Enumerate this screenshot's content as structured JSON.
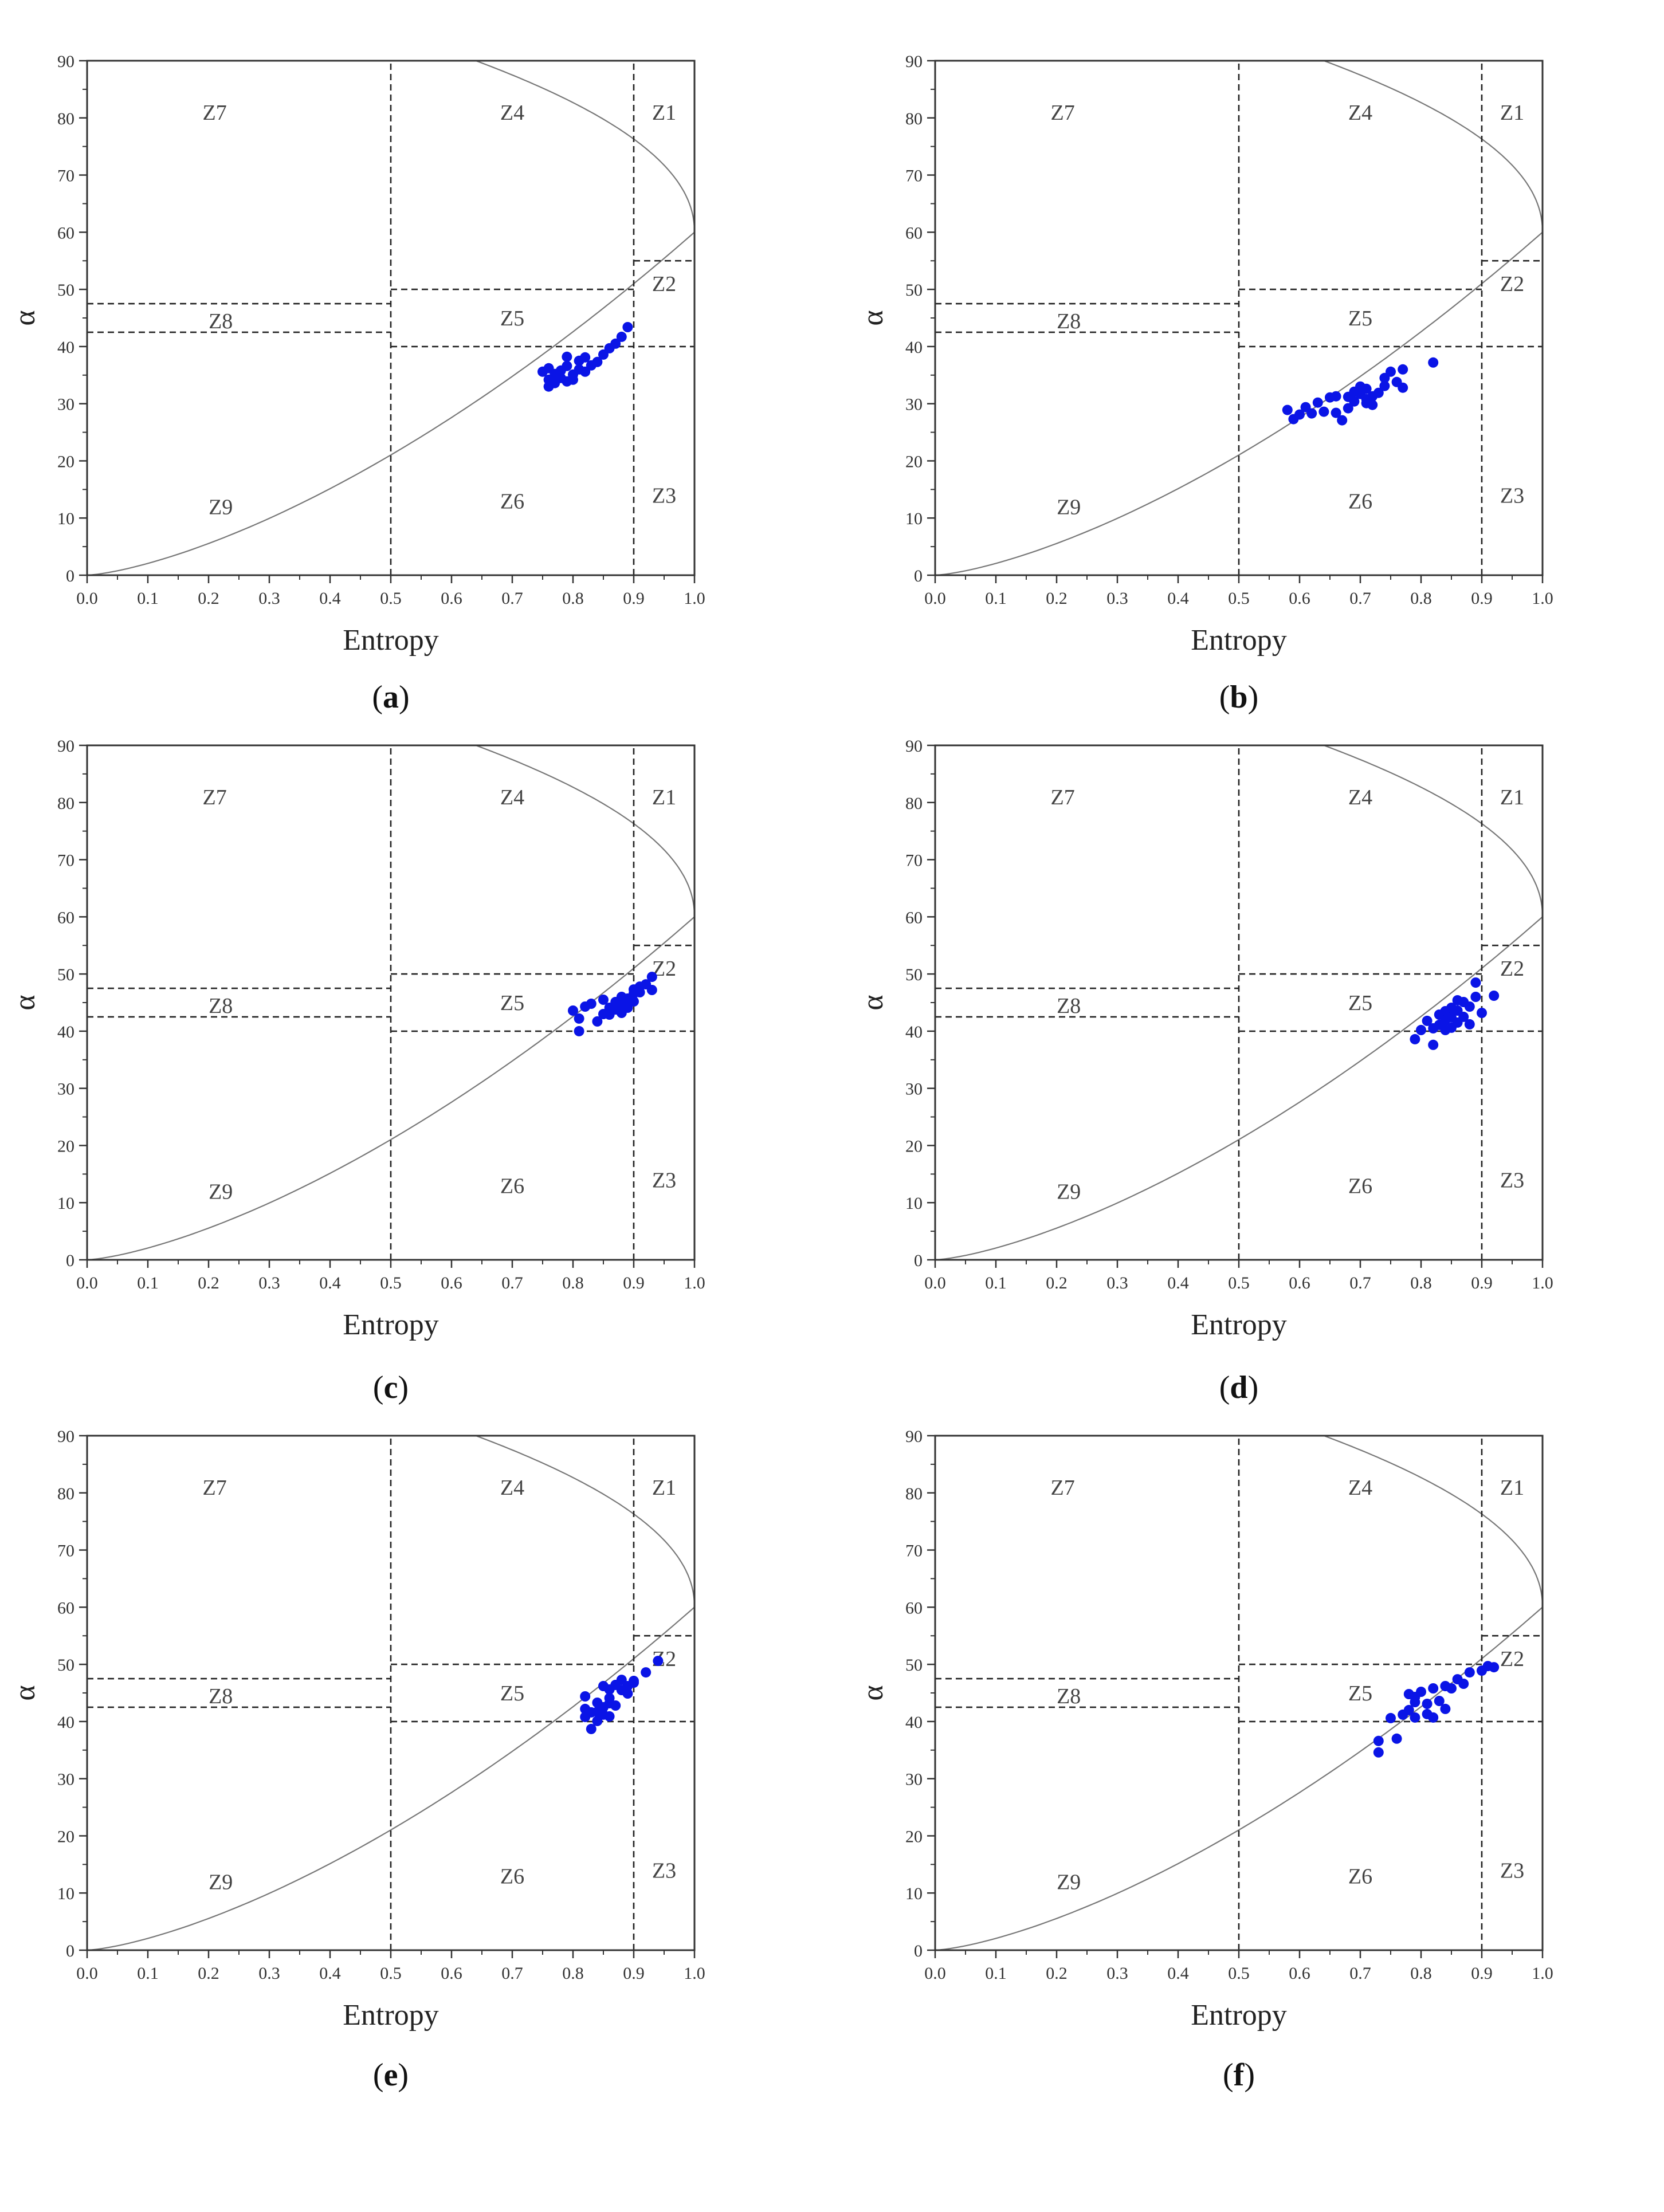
{
  "figure": {
    "axis_color": "#333333",
    "point_color": "#0a14e6",
    "curve_color": "#777777",
    "zone_line_color": "#222222"
  },
  "chart_data": [
    {
      "type": "scatter",
      "caption": "a",
      "xlabel": "Entropy",
      "ylabel": "α",
      "xlim": [
        0.0,
        1.0
      ],
      "ylim": [
        0,
        90
      ],
      "x_ticks": [
        "0.0",
        "0.1",
        "0.2",
        "0.3",
        "0.4",
        "0.5",
        "0.6",
        "0.7",
        "0.8",
        "0.9",
        "1.0"
      ],
      "y_ticks": [
        "0",
        "10",
        "20",
        "30",
        "40",
        "50",
        "60",
        "70",
        "80",
        "90"
      ],
      "zones": [
        "Z1",
        "Z2",
        "Z3",
        "Z4",
        "Z5",
        "Z6",
        "Z7",
        "Z8",
        "Z9"
      ],
      "boundary": "feasible H–α region (curved outline)",
      "points": [
        [
          0.75,
          35.6
        ],
        [
          0.76,
          34.2
        ],
        [
          0.76,
          33
        ],
        [
          0.77,
          35.2
        ],
        [
          0.77,
          33.6
        ],
        [
          0.78,
          35.8
        ],
        [
          0.78,
          34.5
        ],
        [
          0.79,
          36.6
        ],
        [
          0.79,
          38.2
        ],
        [
          0.8,
          35.1
        ],
        [
          0.8,
          34.2
        ],
        [
          0.81,
          37.5
        ],
        [
          0.81,
          36
        ],
        [
          0.82,
          35.6
        ],
        [
          0.83,
          36.7
        ],
        [
          0.85,
          38.6
        ],
        [
          0.86,
          39.7
        ],
        [
          0.87,
          40.5
        ],
        [
          0.88,
          41.7
        ],
        [
          0.89,
          43.4
        ],
        [
          0.77,
          34.6
        ],
        [
          0.79,
          33.9
        ],
        [
          0.82,
          38.1
        ],
        [
          0.84,
          37.3
        ],
        [
          0.76,
          36.2
        ]
      ]
    },
    {
      "type": "scatter",
      "caption": "b",
      "xlabel": "Entropy",
      "ylabel": "α",
      "xlim": [
        0.0,
        1.0
      ],
      "ylim": [
        0,
        90
      ],
      "x_ticks": [
        "0.0",
        "0.1",
        "0.2",
        "0.3",
        "0.4",
        "0.5",
        "0.6",
        "0.7",
        "0.8",
        "0.9",
        "1.0"
      ],
      "y_ticks": [
        "0",
        "10",
        "20",
        "30",
        "40",
        "50",
        "60",
        "70",
        "80",
        "90"
      ],
      "zones": [
        "Z1",
        "Z2",
        "Z3",
        "Z4",
        "Z5",
        "Z6",
        "Z7",
        "Z8",
        "Z9"
      ],
      "boundary": "feasible H–α region (curved outline)",
      "points": [
        [
          0.58,
          28.9
        ],
        [
          0.59,
          27.3
        ],
        [
          0.6,
          28.1
        ],
        [
          0.61,
          29.4
        ],
        [
          0.62,
          28.3
        ],
        [
          0.63,
          30.2
        ],
        [
          0.64,
          28.6
        ],
        [
          0.65,
          31.1
        ],
        [
          0.66,
          31.3
        ],
        [
          0.67,
          27.1
        ],
        [
          0.68,
          29.2
        ],
        [
          0.68,
          31.2
        ],
        [
          0.69,
          30.4
        ],
        [
          0.69,
          32.1
        ],
        [
          0.7,
          31.7
        ],
        [
          0.7,
          33
        ],
        [
          0.71,
          30.1
        ],
        [
          0.71,
          32.6
        ],
        [
          0.72,
          31.3
        ],
        [
          0.72,
          29.8
        ],
        [
          0.73,
          31.9
        ],
        [
          0.74,
          33.1
        ],
        [
          0.75,
          35.6
        ],
        [
          0.76,
          33.8
        ],
        [
          0.77,
          36
        ],
        [
          0.77,
          32.8
        ],
        [
          0.82,
          37.2
        ],
        [
          0.66,
          28.4
        ],
        [
          0.71,
          30.8
        ],
        [
          0.74,
          34.5
        ]
      ]
    },
    {
      "type": "scatter",
      "caption": "c",
      "xlabel": "Entropy",
      "ylabel": "α",
      "xlim": [
        0.0,
        1.0
      ],
      "ylim": [
        0,
        90
      ],
      "x_ticks": [
        "0.0",
        "0.1",
        "0.2",
        "0.3",
        "0.4",
        "0.5",
        "0.6",
        "0.7",
        "0.8",
        "0.9",
        "1.0"
      ],
      "y_ticks": [
        "0",
        "10",
        "20",
        "30",
        "40",
        "50",
        "60",
        "70",
        "80",
        "90"
      ],
      "zones": [
        "Z1",
        "Z2",
        "Z3",
        "Z4",
        "Z5",
        "Z6",
        "Z7",
        "Z8",
        "Z9"
      ],
      "boundary": "feasible H–α region (curved outline)",
      "points": [
        [
          0.8,
          43.6
        ],
        [
          0.81,
          42.2
        ],
        [
          0.81,
          40
        ],
        [
          0.82,
          44.3
        ],
        [
          0.83,
          44.8
        ],
        [
          0.84,
          41.7
        ],
        [
          0.85,
          45.5
        ],
        [
          0.85,
          43
        ],
        [
          0.86,
          44.1
        ],
        [
          0.87,
          43.8
        ],
        [
          0.87,
          45.1
        ],
        [
          0.88,
          44.5
        ],
        [
          0.88,
          46
        ],
        [
          0.89,
          45.7
        ],
        [
          0.89,
          44.1
        ],
        [
          0.9,
          46.6
        ],
        [
          0.9,
          45.2
        ],
        [
          0.91,
          47.8
        ],
        [
          0.91,
          46.8
        ],
        [
          0.92,
          48.2
        ],
        [
          0.93,
          47.2
        ],
        [
          0.93,
          49.5
        ],
        [
          0.86,
          42.9
        ],
        [
          0.88,
          43.2
        ],
        [
          0.9,
          47.3
        ]
      ]
    },
    {
      "type": "scatter",
      "caption": "d",
      "xlabel": "Entropy",
      "ylabel": "α",
      "xlim": [
        0.0,
        1.0
      ],
      "ylim": [
        0,
        90
      ],
      "x_ticks": [
        "0.0",
        "0.1",
        "0.2",
        "0.3",
        "0.4",
        "0.5",
        "0.6",
        "0.7",
        "0.8",
        "0.9",
        "1.0"
      ],
      "y_ticks": [
        "0",
        "10",
        "20",
        "30",
        "40",
        "50",
        "60",
        "70",
        "80",
        "90"
      ],
      "zones": [
        "Z1",
        "Z2",
        "Z3",
        "Z4",
        "Z5",
        "Z6",
        "Z7",
        "Z8",
        "Z9"
      ],
      "boundary": "feasible H–α region (curved outline)",
      "points": [
        [
          0.79,
          38.6
        ],
        [
          0.8,
          40.2
        ],
        [
          0.81,
          41.8
        ],
        [
          0.82,
          37.6
        ],
        [
          0.82,
          40.5
        ],
        [
          0.83,
          42.9
        ],
        [
          0.83,
          41.1
        ],
        [
          0.84,
          43.5
        ],
        [
          0.84,
          40.2
        ],
        [
          0.85,
          42.4
        ],
        [
          0.85,
          44.1
        ],
        [
          0.86,
          41.5
        ],
        [
          0.86,
          43.6
        ],
        [
          0.87,
          45.1
        ],
        [
          0.87,
          42.5
        ],
        [
          0.88,
          44.3
        ],
        [
          0.88,
          41.2
        ],
        [
          0.89,
          46
        ],
        [
          0.89,
          48.5
        ],
        [
          0.9,
          43.2
        ],
        [
          0.92,
          46.2
        ],
        [
          0.85,
          40.6
        ],
        [
          0.86,
          45.4
        ],
        [
          0.84,
          41.9
        ]
      ]
    },
    {
      "type": "scatter",
      "caption": "e",
      "xlabel": "Entropy",
      "ylabel": "α",
      "xlim": [
        0.0,
        1.0
      ],
      "ylim": [
        0,
        90
      ],
      "x_ticks": [
        "0.0",
        "0.1",
        "0.2",
        "0.3",
        "0.4",
        "0.5",
        "0.6",
        "0.7",
        "0.8",
        "0.9",
        "1.0"
      ],
      "y_ticks": [
        "0",
        "10",
        "20",
        "30",
        "40",
        "50",
        "60",
        "70",
        "80",
        "90"
      ],
      "zones": [
        "Z1",
        "Z2",
        "Z3",
        "Z4",
        "Z5",
        "Z6",
        "Z7",
        "Z8",
        "Z9"
      ],
      "boundary": "feasible H–α region (curved outline)",
      "points": [
        [
          0.82,
          42.2
        ],
        [
          0.82,
          40.8
        ],
        [
          0.82,
          44.4
        ],
        [
          0.83,
          38.7
        ],
        [
          0.83,
          41.6
        ],
        [
          0.84,
          40.1
        ],
        [
          0.84,
          43.3
        ],
        [
          0.85,
          41.2
        ],
        [
          0.85,
          42.5
        ],
        [
          0.85,
          46.2
        ],
        [
          0.86,
          44.1
        ],
        [
          0.86,
          45.6
        ],
        [
          0.86,
          43.2
        ],
        [
          0.87,
          46.4
        ],
        [
          0.87,
          42.8
        ],
        [
          0.88,
          45.5
        ],
        [
          0.88,
          47.3
        ],
        [
          0.89,
          46.2
        ],
        [
          0.89,
          44.9
        ],
        [
          0.9,
          46.8
        ],
        [
          0.9,
          47.1
        ],
        [
          0.92,
          48.6
        ],
        [
          0.94,
          50.6
        ],
        [
          0.84,
          41.7
        ],
        [
          0.86,
          40.9
        ]
      ]
    },
    {
      "type": "scatter",
      "caption": "f",
      "xlabel": "Entropy",
      "ylabel": "α",
      "xlim": [
        0.0,
        1.0
      ],
      "ylim": [
        0,
        90
      ],
      "x_ticks": [
        "0.0",
        "0.1",
        "0.2",
        "0.3",
        "0.4",
        "0.5",
        "0.6",
        "0.7",
        "0.8",
        "0.9",
        "1.0"
      ],
      "y_ticks": [
        "0",
        "10",
        "20",
        "30",
        "40",
        "50",
        "60",
        "70",
        "80",
        "90"
      ],
      "zones": [
        "Z1",
        "Z2",
        "Z3",
        "Z4",
        "Z5",
        "Z6",
        "Z7",
        "Z8",
        "Z9"
      ],
      "boundary": "feasible H–α region (curved outline)",
      "points": [
        [
          0.73,
          36.6
        ],
        [
          0.73,
          34.6
        ],
        [
          0.75,
          40.6
        ],
        [
          0.76,
          37
        ],
        [
          0.77,
          41.2
        ],
        [
          0.78,
          44.8
        ],
        [
          0.78,
          42
        ],
        [
          0.79,
          40.7
        ],
        [
          0.79,
          43.4
        ],
        [
          0.8,
          45.2
        ],
        [
          0.81,
          43.1
        ],
        [
          0.82,
          45.8
        ],
        [
          0.82,
          40.7
        ],
        [
          0.83,
          43.6
        ],
        [
          0.84,
          46.2
        ],
        [
          0.84,
          42.2
        ],
        [
          0.85,
          45.8
        ],
        [
          0.86,
          47.4
        ],
        [
          0.87,
          46.6
        ],
        [
          0.88,
          48.6
        ],
        [
          0.9,
          48.9
        ],
        [
          0.91,
          49.7
        ],
        [
          0.92,
          49.5
        ],
        [
          0.79,
          44.3
        ],
        [
          0.81,
          41.3
        ]
      ]
    }
  ]
}
